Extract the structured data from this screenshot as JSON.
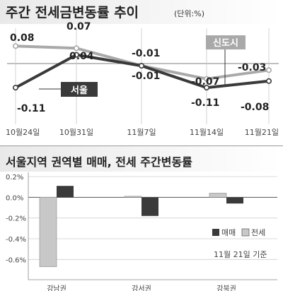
{
  "chart_data": [
    {
      "type": "line",
      "title": "주간 전세금변동률 추이",
      "unit": "(단위:%)",
      "categories": [
        "10월24일",
        "10월31일",
        "11월7일",
        "11월14일",
        "11월21일"
      ],
      "series": [
        {
          "name": "서울",
          "color": "#3a3a3a",
          "values": [
            -0.11,
            0.04,
            -0.01,
            -0.11,
            -0.08
          ],
          "labels": [
            "-0.11",
            "0.04",
            "-0.01",
            "-0.11",
            "-0.08"
          ]
        },
        {
          "name": "신도시",
          "color": "#a9a9a9",
          "values": [
            0.08,
            0.07,
            -0.01,
            -0.07,
            -0.03
          ],
          "labels": [
            "0.08",
            "0.07",
            "-0.01",
            "-0.07",
            "-0.03"
          ]
        }
      ],
      "baseline": 0
    },
    {
      "type": "bar",
      "title": "서울지역 권역별 매매, 전세 주간변동률",
      "categories": [
        "강남권",
        "강서권",
        "강북권"
      ],
      "series": [
        {
          "name": "매매",
          "color": "#3a3a3a",
          "values": [
            0.11,
            -0.18,
            -0.06
          ]
        },
        {
          "name": "전세",
          "color": "#c8c8c8",
          "values": [
            -0.67,
            0.01,
            0.04
          ]
        }
      ],
      "ylim": [
        -0.7,
        0.2
      ],
      "yticks": [
        "0.2%",
        "0.0%",
        "-0.2%",
        "-0.4%",
        "-0.6%"
      ],
      "ytick_values": [
        0.2,
        0.0,
        -0.2,
        -0.4,
        -0.6
      ],
      "note": "11월 21일 기준"
    }
  ]
}
